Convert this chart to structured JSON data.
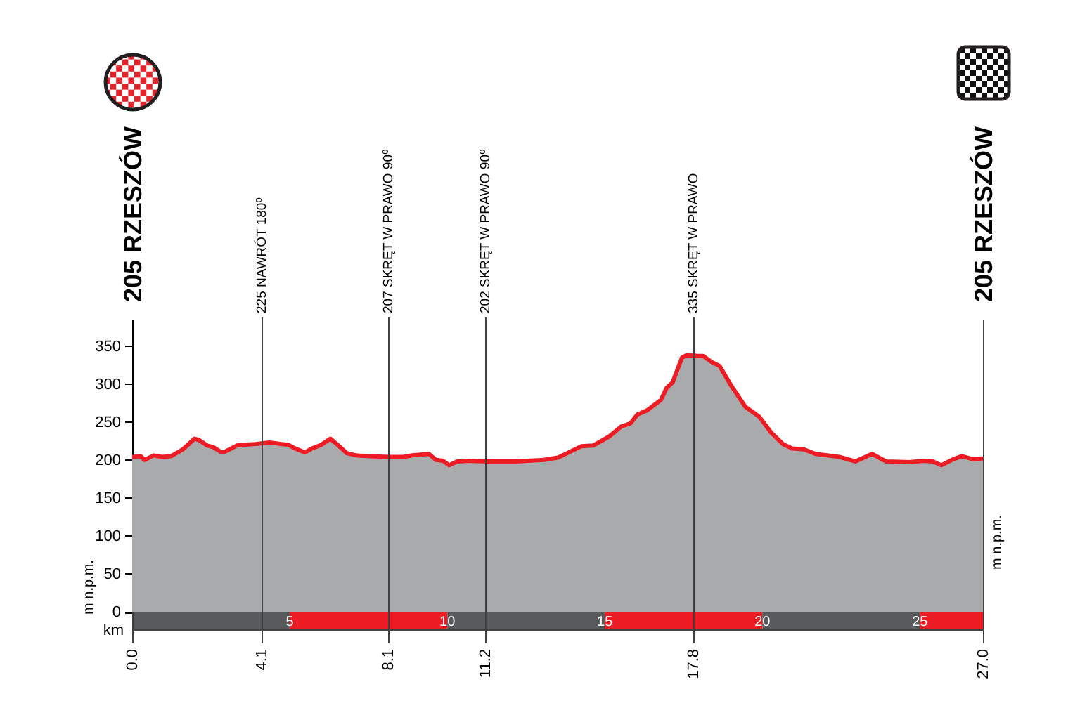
{
  "chart_data": {
    "type": "area",
    "color": "#ed1c24",
    "x": [
      0,
      0.27,
      0.39,
      0.68,
      0.94,
      1.24,
      1.61,
      1.98,
      2.13,
      2.38,
      2.57,
      2.8,
      2.95,
      3.32,
      3.54,
      3.91,
      4.36,
      4.73,
      4.95,
      5.18,
      5.48,
      5.7,
      6.0,
      6.29,
      6.52,
      6.81,
      7.11,
      7.56,
      8.15,
      8.6,
      8.89,
      9.42,
      9.64,
      9.86,
      10.06,
      10.31,
      10.68,
      11.28,
      12.17,
      13.06,
      13.51,
      13.66,
      14.1,
      14.25,
      14.63,
      15.14,
      15.52,
      15.81,
      16.04,
      16.33,
      16.78,
      16.96,
      17.15,
      17.45,
      17.6,
      17.97,
      18.12,
      18.39,
      18.64,
      19.01,
      19.46,
      19.9,
      20.28,
      20.65,
      20.95,
      21.32,
      21.69,
      22.44,
      22.95,
      23.48,
      23.92,
      24.67,
      25.11,
      25.41,
      25.68,
      26.01,
      26.33,
      26.67,
      27
    ],
    "values": [
      205,
      206,
      201,
      207,
      205,
      206,
      215,
      229,
      227,
      220,
      218,
      212,
      212,
      220,
      221,
      222,
      224,
      222,
      221,
      216,
      211,
      216,
      221,
      229,
      221,
      210,
      207,
      206,
      205,
      205,
      207,
      209,
      201,
      200,
      194,
      199,
      200,
      199,
      199,
      201,
      204,
      207,
      216,
      219,
      220,
      232,
      245,
      249,
      261,
      266,
      280,
      296,
      303,
      336,
      339,
      338,
      338,
      330,
      325,
      299,
      271,
      258,
      237,
      222,
      216,
      215,
      209,
      205,
      199,
      209,
      199,
      198,
      200,
      199,
      194,
      201,
      206,
      202,
      203
    ],
    "xlim": [
      0,
      27
    ],
    "xticks": [
      {
        "value": 0,
        "label": "0.0"
      },
      4.1,
      8.1,
      11.2,
      17.8,
      {
        "value": 27,
        "label": "27.0"
      }
    ],
    "ylim": [
      0,
      385
    ],
    "yticks": [
      0,
      50,
      100,
      150,
      200,
      250,
      300,
      350
    ],
    "ylabel": "m n.p.m.",
    "y2label": "m n.p.m.",
    "x2lim": [
      0,
      27
    ],
    "x2ticks": [
      5,
      10,
      15,
      20,
      25
    ],
    "x2label": "km",
    "ref_lines": [
      {
        "axis": "x",
        "value": 4.1,
        "label": "225 NAWRÓT 180⁰"
      },
      {
        "axis": "x",
        "value": 8.1,
        "label": "207 SKRĘT W PRAWO 90⁰"
      },
      {
        "axis": "x",
        "value": 11.2,
        "label": "202 SKRĘT W PRAWO 90⁰"
      },
      {
        "axis": "x",
        "value": 17.8,
        "label": "335 SKRĘT W PRAWO"
      }
    ],
    "annotations": [
      "205 RZESZÓW",
      "205 RZESZÓW"
    ],
    "legend": false
  }
}
